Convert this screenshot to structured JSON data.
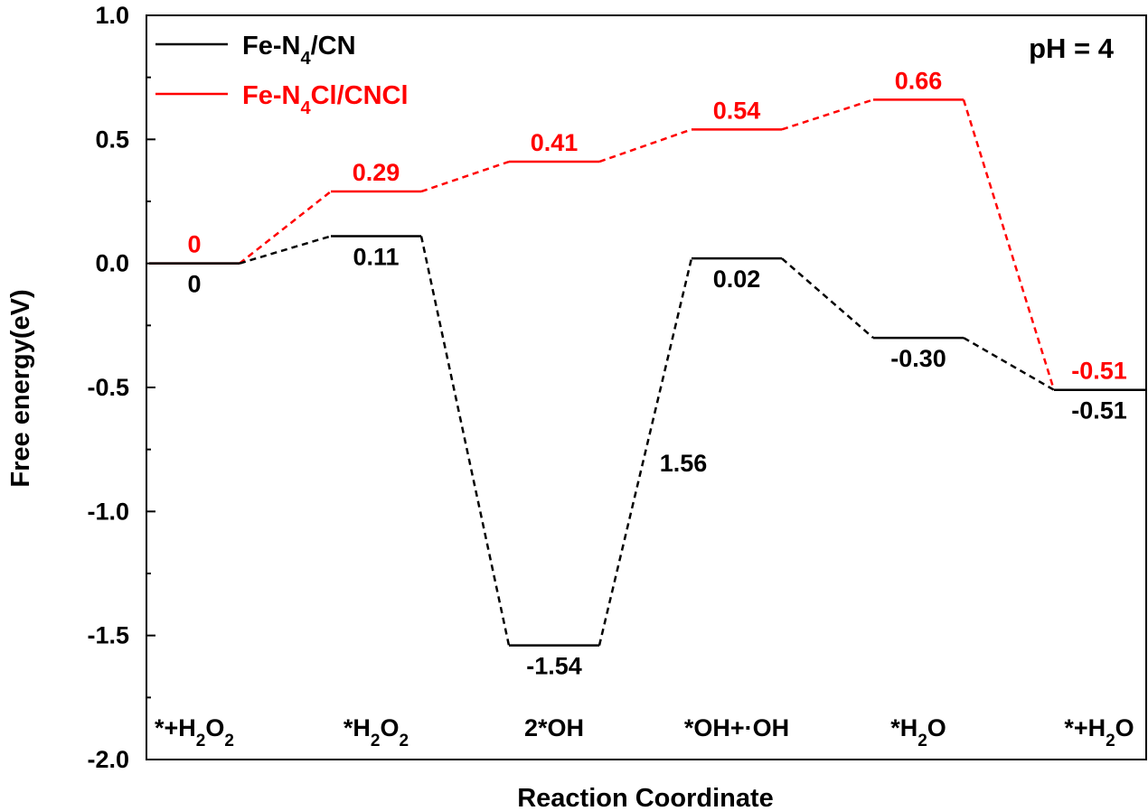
{
  "chart_data": {
    "type": "line",
    "xlabel": "Reaction Coordinate",
    "ylabel": "Free energy(eV)",
    "ylim": [
      -2.0,
      1.0
    ],
    "yticks": [
      "1.0",
      "0.5",
      "0.0",
      "-0.5",
      "-1.0",
      "-1.5",
      "-2.0"
    ],
    "categories": [
      "*+H₂O₂",
      "*H₂O₂",
      "2*OH",
      "*OH+·OH",
      "*H₂O",
      "*+H₂O"
    ],
    "annotation": "pH = 4",
    "barrier_label": "1.56",
    "series": [
      {
        "name": "Fe-N₄/CN",
        "color": "#000000",
        "values": [
          0,
          0.11,
          -1.54,
          0.02,
          -0.3,
          -0.51
        ],
        "labels": [
          "0",
          "0.11",
          "-1.54",
          "0.02",
          "-0.30",
          "-0.51"
        ]
      },
      {
        "name": "Fe-N₄Cl/CNCl",
        "color": "#ff0000",
        "values": [
          0,
          0.29,
          0.41,
          0.54,
          0.66,
          -0.51
        ],
        "labels": [
          "0",
          "0.29",
          "0.41",
          "0.54",
          "0.66",
          "-0.51"
        ]
      }
    ]
  }
}
